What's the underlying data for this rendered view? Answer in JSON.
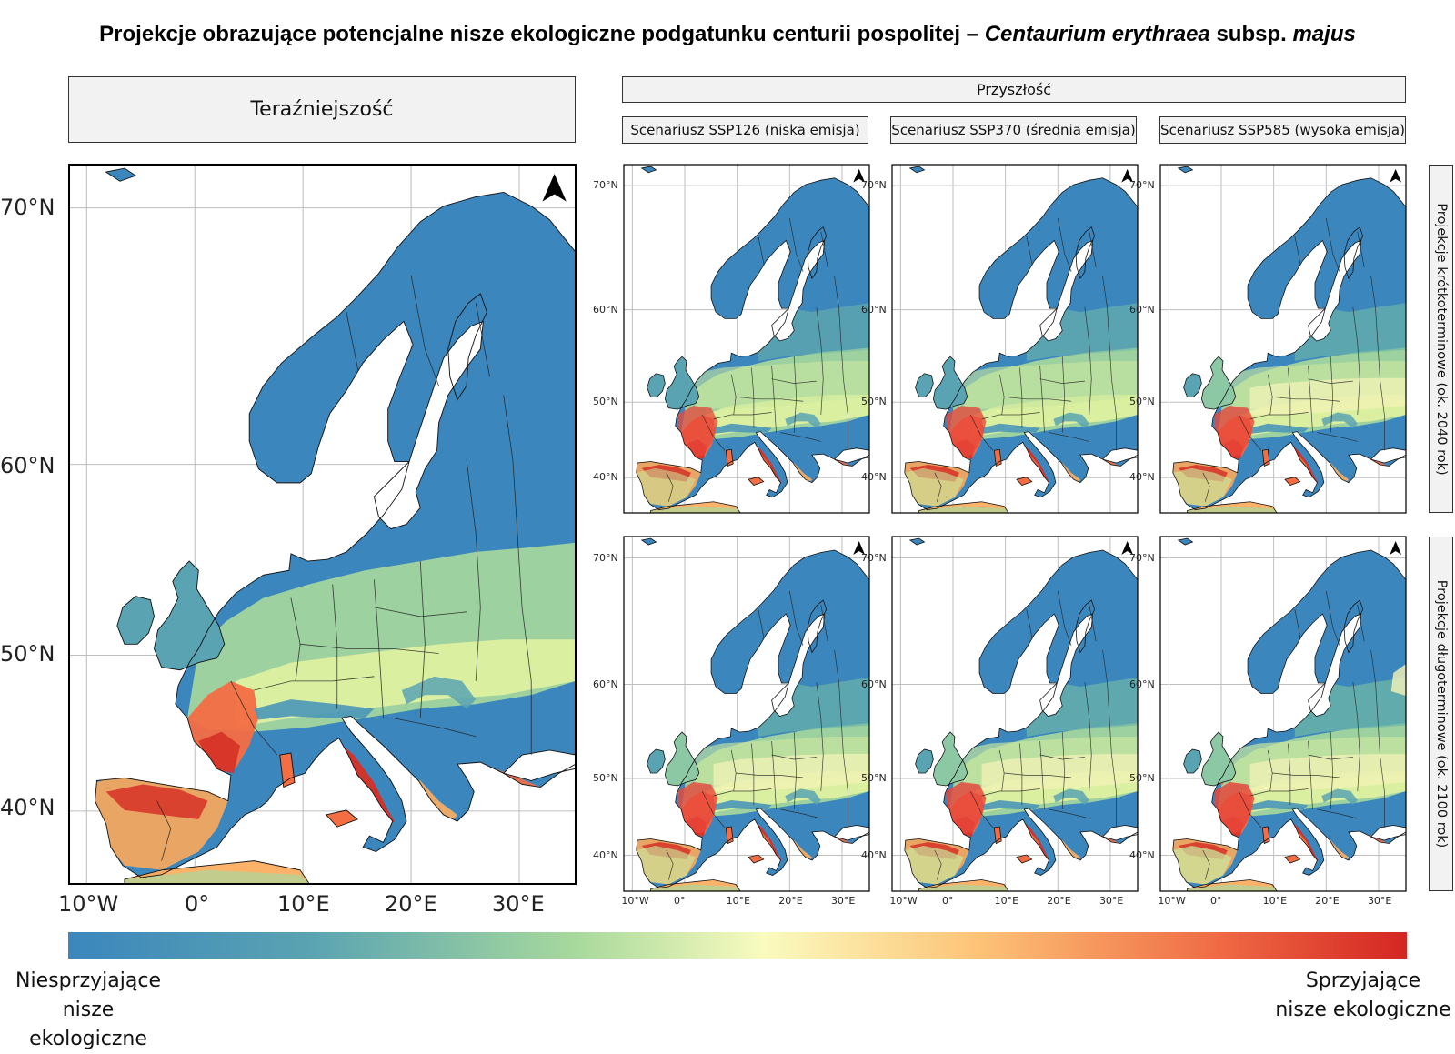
{
  "title": {
    "prefix": "Projekcje obrazujące potencjalne nisze ekologiczne podgatunku centurii pospolitej – ",
    "species_italic": "Centaurium erythraea",
    "subsp": " subsp. ",
    "subsp_italic": "majus"
  },
  "present_header": "Teraźniejszość",
  "future_header": "Przyszłość",
  "scenarios": [
    "Scenariusz SSP126 (niska emisja)",
    "Scenariusz SSP370 (średnia emisja)",
    "Scenariusz SSP585 (wysoka emisja)"
  ],
  "row_labels": [
    "Projekcje krótkoterminowe (ok. 2040 rok)",
    "Projekcje długoterminowe (ok. 2100 rok)"
  ],
  "lat_labels": {
    "70": "70°N",
    "60": "60°N",
    "50": "50°N",
    "40": "40°N"
  },
  "lon_labels": [
    "10°W",
    "0°",
    "10°E",
    "20°E",
    "30°E"
  ],
  "legend": {
    "low": "Niesprzyjające\nnisze ekologiczne",
    "high": "Sprzyjające\nnisze ekologiczne"
  },
  "colors": {
    "unfavourable": "#3b86bd",
    "favourable": "#d42622",
    "water": "#ffffff"
  }
}
